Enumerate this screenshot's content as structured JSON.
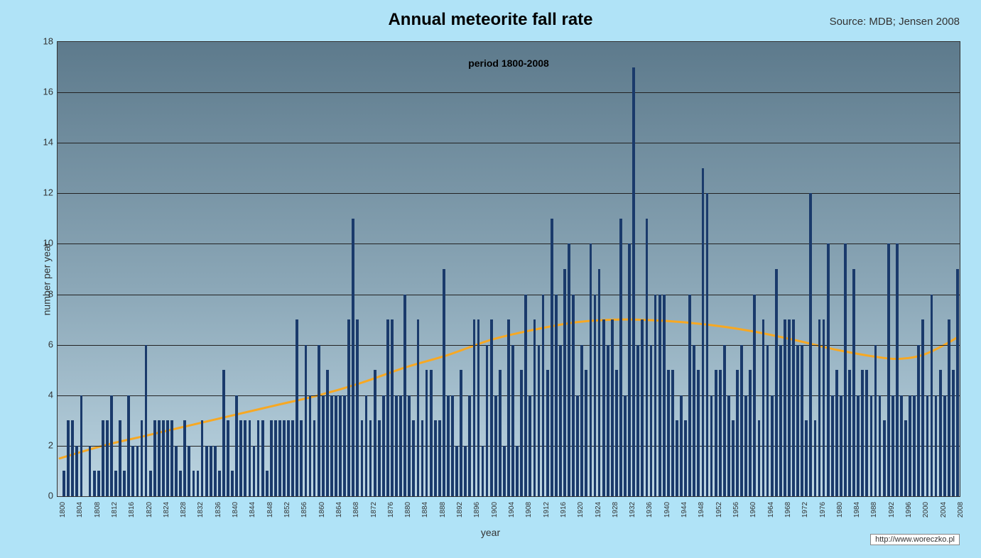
{
  "title": "Annual meteorite fall rate",
  "subtitle": "period 1800-2008",
  "source": "Source: MDB; Jensen 2008",
  "ylabel": "number per year",
  "xlabel": "year",
  "watermark": "http://www.woreczko.pl",
  "chart": {
    "type": "bar",
    "background_gradient": [
      "#5d7a8c",
      "#8ca8b8",
      "#bcd5e2"
    ],
    "page_background": "#b0e3f7",
    "bar_color": "#1a3a6b",
    "grid_color": "#222222",
    "trend_color": "#f7a823",
    "trend_width": 3,
    "ylim": [
      0,
      18
    ],
    "ytick_step": 2,
    "xtick_step": 4,
    "x_start": 1800,
    "x_end": 2008,
    "title_fontsize": 24,
    "label_fontsize": 14,
    "values": [
      0,
      1,
      3,
      3,
      2,
      4,
      0,
      2,
      1,
      1,
      3,
      3,
      4,
      1,
      3,
      1,
      4,
      2,
      2,
      3,
      6,
      1,
      3,
      3,
      3,
      3,
      3,
      2,
      1,
      3,
      2,
      1,
      1,
      3,
      2,
      2,
      2,
      1,
      5,
      3,
      1,
      4,
      3,
      3,
      3,
      2,
      3,
      3,
      1,
      3,
      3,
      3,
      3,
      3,
      3,
      7,
      3,
      6,
      4,
      3,
      6,
      4,
      5,
      4,
      4,
      4,
      4,
      7,
      11,
      7,
      3,
      4,
      3,
      5,
      3,
      4,
      7,
      7,
      4,
      4,
      8,
      4,
      3,
      7,
      3,
      5,
      5,
      3,
      3,
      9,
      4,
      4,
      2,
      5,
      2,
      4,
      7,
      7,
      2,
      6,
      7,
      4,
      5,
      2,
      7,
      6,
      2,
      5,
      8,
      4,
      7,
      6,
      8,
      5,
      11,
      8,
      6,
      9,
      10,
      8,
      4,
      6,
      5,
      10,
      8,
      9,
      7,
      6,
      7,
      5,
      11,
      4,
      10,
      17,
      6,
      7,
      11,
      6,
      8,
      8,
      8,
      5,
      5,
      3,
      4,
      3,
      8,
      6,
      5,
      13,
      12,
      4,
      5,
      5,
      6,
      4,
      3,
      5,
      6,
      4,
      5,
      8,
      3,
      7,
      6,
      4,
      9,
      6,
      7,
      7,
      7,
      6,
      6,
      3,
      12,
      3,
      7,
      7,
      10,
      4,
      5,
      4,
      10,
      5,
      9,
      4,
      5,
      5,
      4,
      6,
      4,
      3,
      10,
      4,
      10,
      4,
      3,
      4,
      4,
      6,
      7,
      4,
      8,
      4,
      5,
      4,
      7,
      5,
      9
    ],
    "trend_points": [
      [
        1800,
        1.5
      ],
      [
        1810,
        2.0
      ],
      [
        1820,
        2.4
      ],
      [
        1830,
        2.8
      ],
      [
        1840,
        3.2
      ],
      [
        1850,
        3.6
      ],
      [
        1860,
        4.0
      ],
      [
        1870,
        4.5
      ],
      [
        1880,
        5.1
      ],
      [
        1890,
        5.6
      ],
      [
        1900,
        6.2
      ],
      [
        1910,
        6.6
      ],
      [
        1920,
        6.9
      ],
      [
        1930,
        7.0
      ],
      [
        1940,
        6.95
      ],
      [
        1950,
        6.8
      ],
      [
        1960,
        6.55
      ],
      [
        1970,
        6.2
      ],
      [
        1980,
        5.8
      ],
      [
        1990,
        5.5
      ],
      [
        1995,
        5.45
      ],
      [
        2000,
        5.6
      ],
      [
        2005,
        6.0
      ],
      [
        2008,
        6.3
      ]
    ]
  }
}
